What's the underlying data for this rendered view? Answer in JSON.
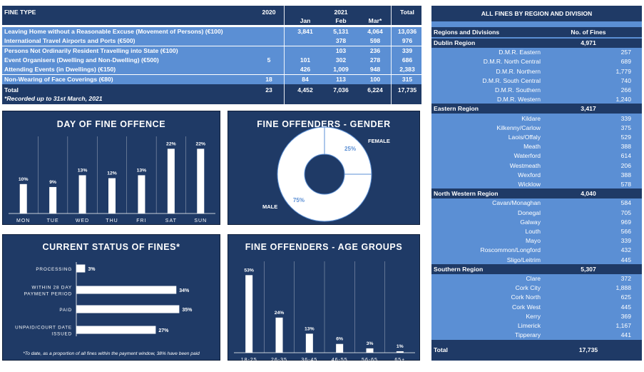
{
  "fine_table": {
    "headers": {
      "fine_type": "FINE TYPE",
      "y2020": "2020",
      "y2021": "2021",
      "jan": "Jan",
      "feb": "Feb",
      "mar": "Mar*",
      "total": "Total"
    },
    "rows": [
      {
        "label": "Leaving Home without a Reasonable Excuse (Movement of Persons) (€100)",
        "y2020": "",
        "jan": "3,841",
        "feb": "5,131",
        "mar": "4,064",
        "total": "13,036"
      },
      {
        "label": "International Travel Airports and Ports (€500)",
        "y2020": "",
        "jan": "",
        "feb": "378",
        "mar": "598",
        "total": "976"
      },
      {
        "label": "Persons Not Ordinarily Resident Travelling into State (€100)",
        "y2020": "",
        "jan": "",
        "feb": "103",
        "mar": "236",
        "total": "339"
      },
      {
        "label": "Event Organisers (Dwelling and Non-Dwelling) (€500)",
        "y2020": "5",
        "jan": "101",
        "feb": "302",
        "mar": "278",
        "total": "686"
      },
      {
        "label": "Attending Events (in Dwellings) (€150)",
        "y2020": "",
        "jan": "426",
        "feb": "1,009",
        "mar": "948",
        "total": "2,383"
      },
      {
        "label": "Non-Wearing of Face Coverings (€80)",
        "y2020": "18",
        "jan": "84",
        "feb": "113",
        "mar": "100",
        "total": "315"
      }
    ],
    "total_row": {
      "label": "Total",
      "y2020": "23",
      "jan": "4,452",
      "feb": "7,036",
      "mar": "6,224",
      "total": "17,735"
    },
    "note": "*Recorded up to 31st March, 2021"
  },
  "region_table": {
    "title": "ALL FINES BY REGION AND DIVISION",
    "col_region": "Regions and Divisions",
    "col_fines": "No. of Fines",
    "groups": [
      {
        "name": "Dublin Region",
        "total": "4,971",
        "items": [
          {
            "name": "D.M.R. Eastern",
            "value": "257"
          },
          {
            "name": "D.M.R. North Central",
            "value": "689"
          },
          {
            "name": "D.M.R. Northern",
            "value": "1,779"
          },
          {
            "name": "D.M.R. South Central",
            "value": "740"
          },
          {
            "name": "D.M.R. Southern",
            "value": "266"
          },
          {
            "name": "D.M.R. Western",
            "value": "1,240"
          }
        ]
      },
      {
        "name": "Eastern Region",
        "total": "3,417",
        "items": [
          {
            "name": "Kildare",
            "value": "339"
          },
          {
            "name": "Kilkenny/Carlow",
            "value": "375"
          },
          {
            "name": "Laois/Offaly",
            "value": "529"
          },
          {
            "name": "Meath",
            "value": "388"
          },
          {
            "name": "Waterford",
            "value": "614"
          },
          {
            "name": "Westmeath",
            "value": "206"
          },
          {
            "name": "Wexford",
            "value": "388"
          },
          {
            "name": "Wicklow",
            "value": "578"
          }
        ]
      },
      {
        "name": "North Western Region",
        "total": "4,040",
        "items": [
          {
            "name": "Cavan/Monaghan",
            "value": "584"
          },
          {
            "name": "Donegal",
            "value": "705"
          },
          {
            "name": "Galway",
            "value": "969"
          },
          {
            "name": "Louth",
            "value": "566"
          },
          {
            "name": "Mayo",
            "value": "339"
          },
          {
            "name": "Roscommon/Longford",
            "value": "432"
          },
          {
            "name": "Sligo/Leitrim",
            "value": "445"
          }
        ]
      },
      {
        "name": "Southern Region",
        "total": "5,307",
        "items": [
          {
            "name": "Clare",
            "value": "372"
          },
          {
            "name": "Cork City",
            "value": "1,888"
          },
          {
            "name": "Cork North",
            "value": "625"
          },
          {
            "name": "Cork West",
            "value": "445"
          },
          {
            "name": "Kerry",
            "value": "369"
          },
          {
            "name": "Limerick",
            "value": "1,167"
          },
          {
            "name": "Tipperary",
            "value": "441"
          }
        ]
      }
    ],
    "total_label": "Total",
    "total_value": "17,735"
  },
  "colors": {
    "dark": "#1f3a66",
    "mid": "#5b8fd4",
    "white": "#ffffff"
  },
  "chart_data": [
    {
      "type": "bar",
      "title": "DAY OF FINE OFFENCE",
      "categories": [
        "MON",
        "TUE",
        "WED",
        "THU",
        "FRI",
        "SAT",
        "SUN"
      ],
      "values": [
        10,
        9,
        13,
        12,
        13,
        22,
        22
      ],
      "labels": [
        "10%",
        "9%",
        "13%",
        "12%",
        "13%",
        "22%",
        "22%"
      ],
      "ylim": [
        0,
        25
      ]
    },
    {
      "type": "pie",
      "title": "FINE OFFENDERS - GENDER",
      "categories": [
        "FEMALE",
        "MALE"
      ],
      "values": [
        25,
        75
      ],
      "labels": [
        "25%",
        "75%"
      ]
    },
    {
      "type": "bar",
      "orientation": "horizontal",
      "title": "CURRENT STATUS OF FINES*",
      "categories": [
        "PROCESSING",
        "WITHIN 28 DAY PAYMENT PERIOD",
        "PAID",
        "UNPAID/COURT DATE ISSUED"
      ],
      "values": [
        3,
        34,
        35,
        27
      ],
      "labels": [
        "3%",
        "34%",
        "35%",
        "27%"
      ],
      "xlim": [
        0,
        40
      ],
      "note": "*To date, as a proportion of all fines within the payment window, 38% have been paid"
    },
    {
      "type": "bar",
      "title": "FINE OFFENDERS - AGE GROUPS",
      "categories": [
        "18-25",
        "26-35",
        "36-45",
        "46-55",
        "56-65",
        "65+"
      ],
      "values": [
        53,
        24,
        13,
        6,
        3,
        1
      ],
      "labels": [
        "53%",
        "24%",
        "13%",
        "6%",
        "3%",
        "1%"
      ],
      "ylim": [
        0,
        60
      ]
    }
  ]
}
